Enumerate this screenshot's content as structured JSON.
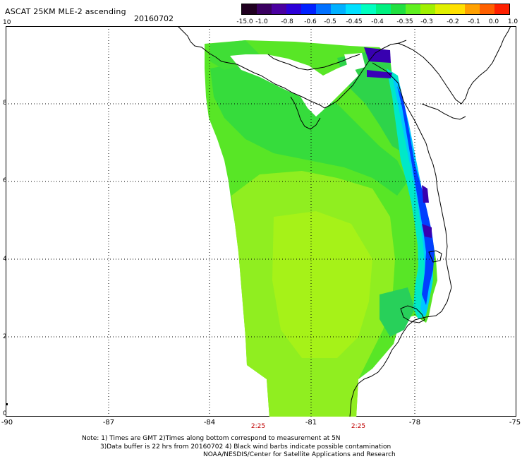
{
  "header": {
    "title": "ASCAT 25KM MLE-2 ascending",
    "date": "20160702"
  },
  "colorbar": {
    "labels": [
      "-15.0",
      "-1.0",
      "-0.8",
      "-0.6",
      "-0.5",
      "-0.45",
      "-0.4",
      "-0.35",
      "-0.3",
      "-0.2",
      "-0.1",
      "0.0",
      "1.0"
    ],
    "colors": [
      "#200020",
      "#3a0060",
      "#4a00a0",
      "#2c00d8",
      "#0020ff",
      "#0070ff",
      "#00b0ff",
      "#00e0ff",
      "#00ffc0",
      "#00f080",
      "#20e040",
      "#60f020",
      "#a0f000",
      "#e0f000",
      "#ffe000",
      "#ffa000",
      "#ff6000",
      "#ff2000"
    ]
  },
  "axes": {
    "lon_ticks": [
      "-90",
      "-87",
      "-84",
      "-81",
      "-78",
      "-75"
    ],
    "lat_ticks": [
      "10",
      "8",
      "6",
      "4",
      "2",
      "0"
    ],
    "lon_range": [
      -90,
      -75
    ],
    "lat_range": [
      0,
      10.3
    ]
  },
  "times": [
    "2:25",
    "2:25"
  ],
  "notes": [
    "Note: 1) Times are GMT 2)Times along bottom correspond to measurement at 5N",
    "3)Data buffer is 22 hrs from 20160702 4) Black wind barbs indicate possible contamination",
    "NOAA/NESDIS/Center for Satellite Applications and Research"
  ]
}
